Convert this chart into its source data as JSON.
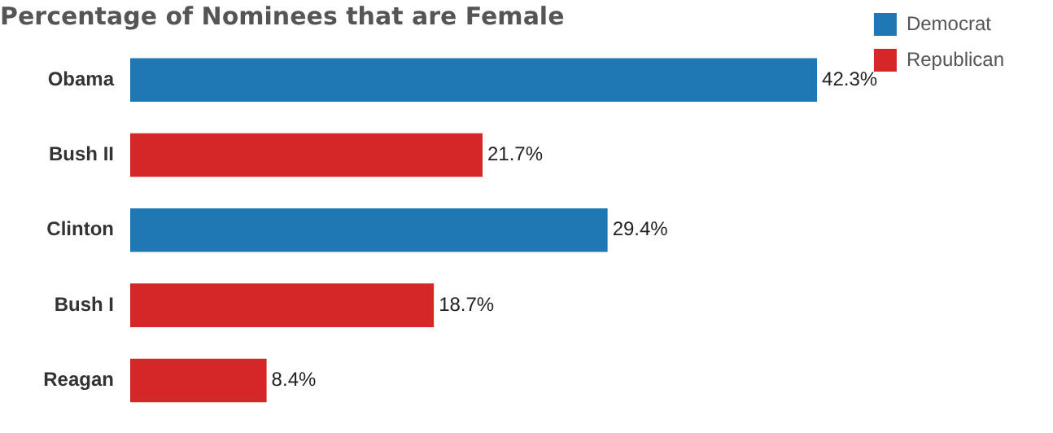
{
  "chart_data": {
    "type": "bar",
    "orientation": "horizontal",
    "stacked": true,
    "title": "Percentage of Nominees that are Female",
    "categories": [
      "Obama",
      "Bush II",
      "Clinton",
      "Bush I",
      "Reagan"
    ],
    "legend": "top right",
    "grid": false,
    "tick_labels": "y",
    "series": [
      {
        "name": "Democrat",
        "color": "#1f77b4",
        "values": [
          42.3,
          null,
          29.4,
          null,
          null
        ],
        "value_labels": [
          "42.3%",
          null,
          "29.4%",
          null,
          null
        ]
      },
      {
        "name": "Republican",
        "color": "#d62728",
        "values": [
          null,
          21.7,
          null,
          18.7,
          8.4
        ],
        "value_labels": [
          null,
          "21.7%",
          null,
          "18.7%",
          "8.4%"
        ]
      }
    ]
  }
}
